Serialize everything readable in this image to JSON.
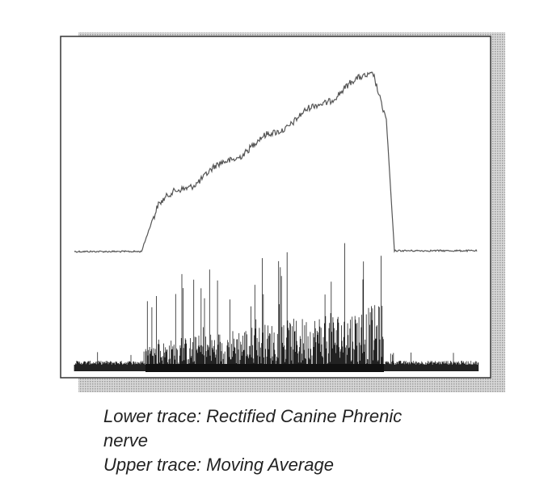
{
  "caption": {
    "lines": [
      "Lower trace: Rectified Canine Phrenic",
      "nerve",
      "Upper trace: Moving Average"
    ]
  }
}
